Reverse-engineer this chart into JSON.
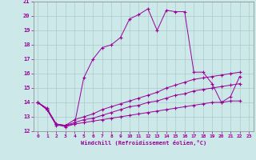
{
  "xlabel": "Windchill (Refroidissement éolien,°C)",
  "background_color": "#cce8e8",
  "line_color": "#990099",
  "grid_color": "#aacccc",
  "xlim": [
    -0.5,
    23.5
  ],
  "ylim": [
    12,
    21
  ],
  "yticks": [
    12,
    13,
    14,
    15,
    16,
    17,
    18,
    19,
    20,
    21
  ],
  "xticks": [
    0,
    1,
    2,
    3,
    4,
    5,
    6,
    7,
    8,
    9,
    10,
    11,
    12,
    13,
    14,
    15,
    16,
    17,
    18,
    19,
    20,
    21,
    22,
    23
  ],
  "s0_x": [
    0,
    1,
    2,
    3,
    4,
    5,
    6,
    7,
    8,
    9,
    10,
    11,
    12,
    13,
    14,
    15,
    16,
    17,
    18,
    19,
    20,
    21,
    22
  ],
  "s0_y": [
    14.0,
    13.6,
    12.5,
    12.3,
    12.5,
    15.7,
    17.0,
    17.8,
    18.0,
    18.5,
    19.8,
    20.1,
    20.5,
    19.0,
    20.4,
    20.3,
    20.3,
    16.1,
    16.1,
    15.3,
    14.0,
    14.4,
    15.8
  ],
  "s1_x": [
    0,
    1,
    2,
    3,
    4,
    5,
    6,
    7,
    8,
    9,
    10,
    11,
    12,
    13,
    14,
    15,
    16,
    17,
    18,
    19,
    20,
    21,
    22
  ],
  "s1_y": [
    14.0,
    13.5,
    12.5,
    12.4,
    12.8,
    13.0,
    13.2,
    13.5,
    13.7,
    13.9,
    14.1,
    14.3,
    14.5,
    14.7,
    15.0,
    15.2,
    15.4,
    15.6,
    15.7,
    15.8,
    15.9,
    16.0,
    16.1
  ],
  "s2_x": [
    0,
    1,
    2,
    3,
    4,
    5,
    6,
    7,
    8,
    9,
    10,
    11,
    12,
    13,
    14,
    15,
    16,
    17,
    18,
    19,
    20,
    21,
    22
  ],
  "s2_y": [
    14.0,
    13.5,
    12.5,
    12.4,
    12.6,
    12.8,
    12.9,
    13.1,
    13.3,
    13.5,
    13.7,
    13.8,
    14.0,
    14.1,
    14.3,
    14.5,
    14.6,
    14.8,
    14.9,
    15.0,
    15.1,
    15.2,
    15.3
  ],
  "s3_x": [
    0,
    1,
    2,
    3,
    4,
    5,
    6,
    7,
    8,
    9,
    10,
    11,
    12,
    13,
    14,
    15,
    16,
    17,
    18,
    19,
    20,
    21,
    22
  ],
  "s3_y": [
    14.0,
    13.5,
    12.4,
    12.4,
    12.5,
    12.6,
    12.7,
    12.8,
    12.9,
    13.0,
    13.1,
    13.2,
    13.3,
    13.4,
    13.5,
    13.6,
    13.7,
    13.8,
    13.9,
    14.0,
    14.0,
    14.1,
    14.1
  ]
}
